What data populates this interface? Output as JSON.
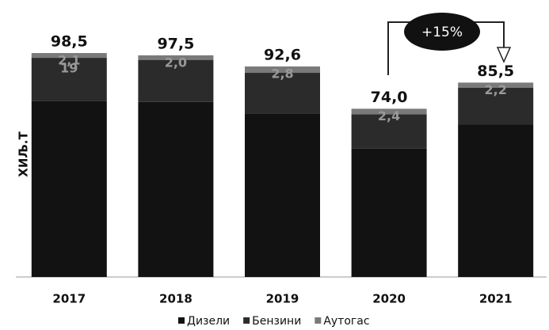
{
  "chart_data": {
    "type": "stacked_bar",
    "y_label": "ХИЉ.Т",
    "categories": [
      "2017",
      "2018",
      "2019",
      "2020",
      "2021"
    ],
    "series": [
      {
        "name": "Дизели",
        "color": "#121212",
        "values": [
          77.4,
          77.0,
          72.0,
          56.5,
          67.0
        ]
      },
      {
        "name": "Бензини",
        "color": "#2b2b2b",
        "values": [
          19,
          18.5,
          17.8,
          15.1,
          16.3
        ],
        "value_labels": [
          "19",
          null,
          null,
          null,
          null
        ]
      },
      {
        "name": "Аутогас",
        "color": "#7a7a7a",
        "values": [
          2.1,
          2.0,
          2.8,
          2.4,
          2.2
        ],
        "value_labels": [
          "2,1",
          "2,0",
          "2,8",
          "2,4",
          "2,2"
        ]
      }
    ],
    "totals": [
      98.5,
      97.5,
      92.6,
      74.0,
      85.5
    ],
    "total_labels": [
      "98,5",
      "97,5",
      "92,6",
      "74,0",
      "85,5"
    ],
    "annotation": "+15%",
    "ylim": [
      0,
      110
    ],
    "legend": "bottom"
  }
}
